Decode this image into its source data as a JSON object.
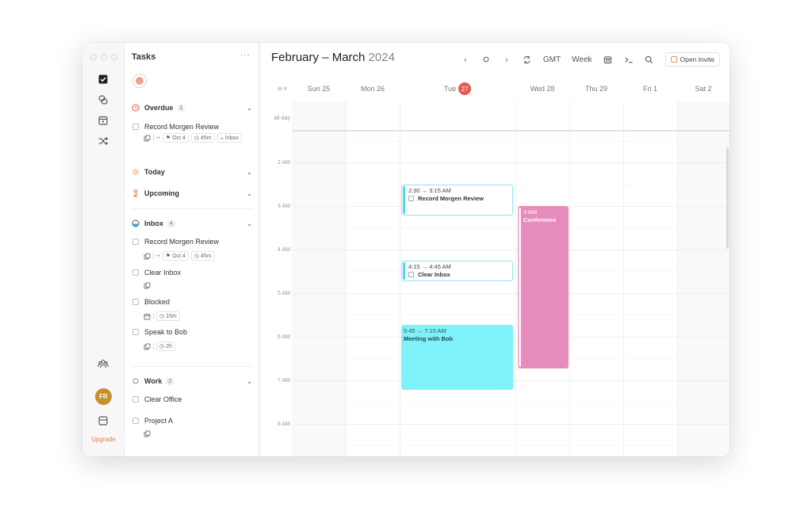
{
  "tasks_panel": {
    "title": "Tasks",
    "more": "···",
    "sections": {
      "overdue": {
        "label": "Overdue",
        "count": "1"
      },
      "today": {
        "label": "Today"
      },
      "upcoming": {
        "label": "Upcoming"
      },
      "inbox": {
        "label": "Inbox",
        "count": "4"
      },
      "work": {
        "label": "Work",
        "count": "2"
      }
    },
    "overdue_items": [
      {
        "title": "Record Morgen Review",
        "date": "Oct 4",
        "duration": "45m",
        "list": "Inbox"
      }
    ],
    "inbox_items": [
      {
        "title": "Record Morgen Review",
        "date": "Oct 4",
        "duration": "45m"
      },
      {
        "title": "Clear Inbox"
      },
      {
        "title": "Blocked",
        "duration": "15m"
      },
      {
        "title": "Speak to Bob",
        "duration": "2h"
      }
    ],
    "work_items": [
      {
        "title": "Clear Office"
      },
      {
        "title": "Project A"
      }
    ]
  },
  "sidebar": {
    "avatar_initials": "FR",
    "upgrade_label": "Upgrade"
  },
  "calendar": {
    "title_months": "February – March",
    "title_year": "2024",
    "timezone": "GMT",
    "view": "Week",
    "open_invite": "Open Invite",
    "week_number": "W 9",
    "days": [
      {
        "label": "Sun 25"
      },
      {
        "label": "Mon 26"
      },
      {
        "label": "Tue",
        "badge": "27"
      },
      {
        "label": "Wed 28"
      },
      {
        "label": "Thu 29"
      },
      {
        "label": "Fri 1"
      },
      {
        "label": "Sat 2"
      }
    ],
    "all_day_label": "all-day",
    "hours": [
      "2 AM",
      "3 AM",
      "4 AM",
      "5 AM",
      "6 AM",
      "7 AM",
      "8 AM"
    ],
    "events": [
      {
        "time": "2:30 → 3:15 AM",
        "title": "Record Morgen Review",
        "day": "Tue 27",
        "color": "#4cdbee"
      },
      {
        "time": "4:15 → 4:45 AM",
        "title": "Clear Inbox",
        "day": "Tue 27",
        "color": "#4cdbee"
      },
      {
        "time": "5:45 → 7:15 AM",
        "title": "Meeting with Bob",
        "day": "Tue 27",
        "color": "#7ff1f9"
      },
      {
        "time": "3 AM",
        "title": "Conference",
        "day": "Wed 28",
        "color": "#e58cbc"
      }
    ]
  },
  "colors": {
    "today_badge": "#e45a52",
    "overdue_icon": "#e45a52",
    "today_icon": "#f0a24a",
    "upcoming_icon": "#e98d5c",
    "avatar": "#c8902a",
    "upgrade": "#e0824a"
  }
}
